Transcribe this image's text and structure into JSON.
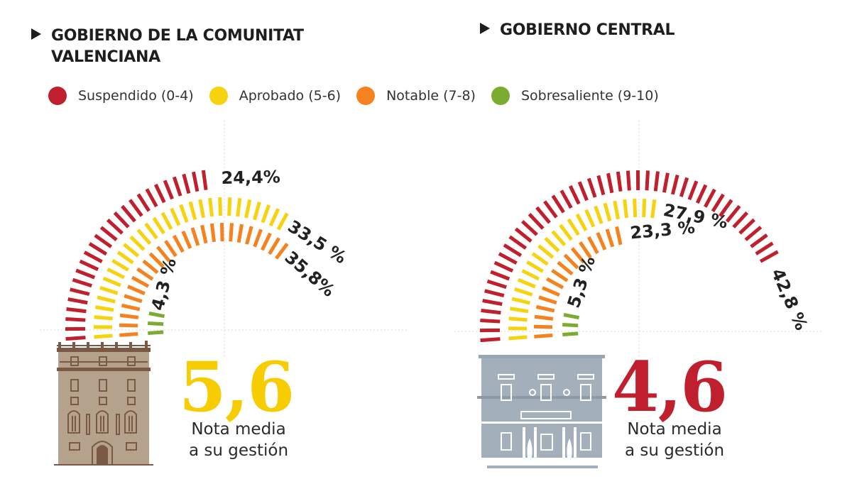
{
  "headers": {
    "left_line1": "GOBIERNO DE LA COMUNITAT",
    "left_line2": "VALENCIANA",
    "right": "GOBIERNO CENTRAL"
  },
  "legend": [
    {
      "label": "Suspendido (0-4)",
      "color": "#c0202e"
    },
    {
      "label": "Aprobado (5-6)",
      "color": "#f7d20e"
    },
    {
      "label": "Notable (7-8)",
      "color": "#f5821f"
    },
    {
      "label": "Sobresaliente (9-10)",
      "color": "#7bab2f"
    }
  ],
  "panels": [
    {
      "average": "5,6",
      "average_color": "#f7cc00",
      "caption_line1": "Nota media",
      "caption_line2": "a su gestión",
      "building": "palau-generalitat"
    },
    {
      "average": "4,6",
      "average_color": "#c0202e",
      "caption_line1": "Nota media",
      "caption_line2": "a su gestión",
      "building": "la-moncloa"
    }
  ],
  "chart_data": [
    {
      "type": "radial-bar",
      "title": "GOBIERNO DE LA COMUNITAT VALENCIANA",
      "categories": [
        "Suspendido (0-4)",
        "Aprobado (5-6)",
        "Notable (7-8)",
        "Sobresaliente (9-10)"
      ],
      "values": [
        24.4,
        33.5,
        35.8,
        4.3
      ],
      "labels": [
        "24,4%",
        "33,5 %",
        "35,8%",
        "4,3 %"
      ],
      "colors": [
        "#c0202e",
        "#f7d20e",
        "#f5821f",
        "#7bab2f"
      ],
      "scale_max": 50,
      "average": 5.6
    },
    {
      "type": "radial-bar",
      "title": "GOBIERNO CENTRAL",
      "categories": [
        "Suspendido (0-4)",
        "Aprobado (5-6)",
        "Notable (7-8)",
        "Sobresaliente (9-10)"
      ],
      "values": [
        42.8,
        27.9,
        23.3,
        5.3
      ],
      "labels": [
        "42,8 %",
        "27,9 %",
        "23,3 %",
        "5,3 %"
      ],
      "colors": [
        "#c0202e",
        "#f7d20e",
        "#f5821f",
        "#7bab2f"
      ],
      "scale_max": 50,
      "average": 4.6
    }
  ]
}
